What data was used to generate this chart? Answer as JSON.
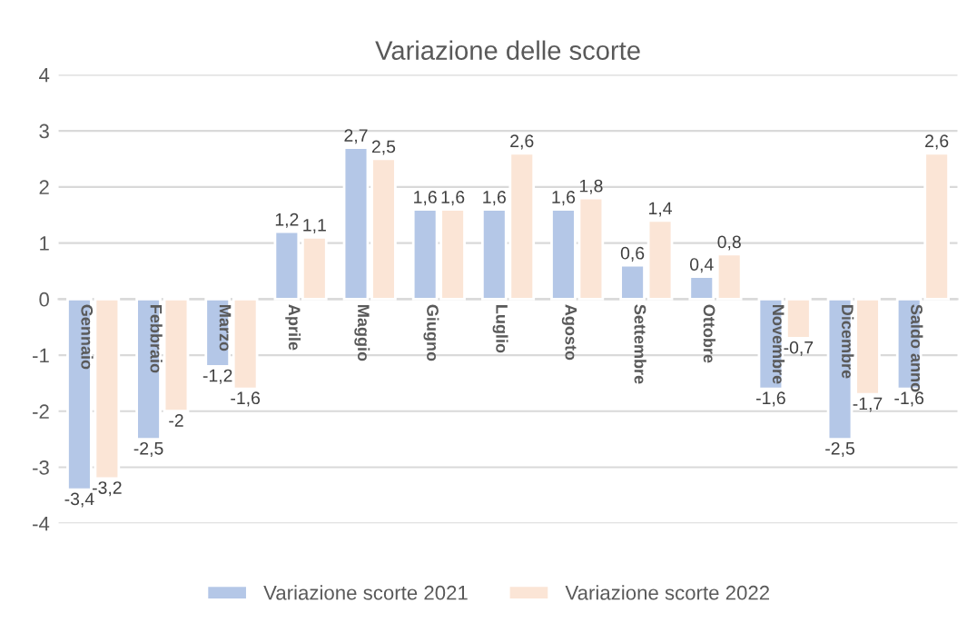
{
  "chart_data": {
    "type": "bar",
    "title": "Variazione delle scorte",
    "categories": [
      "Gennaio",
      "Febbraio",
      "Marzo",
      "Aprile",
      "Maggio",
      "Giugno",
      "Luglio",
      "Agosto",
      "Settembre",
      "Ottobre",
      "Novembre",
      "Dicembre",
      "Saldo anno"
    ],
    "series": [
      {
        "name": "Variazione scorte 2021",
        "color": "#b4c7e7",
        "values": [
          -3.4,
          -2.5,
          -1.2,
          1.2,
          2.7,
          1.6,
          1.6,
          1.6,
          0.6,
          0.4,
          -1.6,
          -2.5,
          -1.6
        ],
        "value_labels": [
          "-3,4",
          "-2,5",
          "-1,2",
          "1,2",
          "2,7",
          "1,6",
          "1,6",
          "1,6",
          "0,6",
          "0,4",
          "-1,6",
          "-2,5",
          "-1,6"
        ]
      },
      {
        "name": "Variazione scorte 2022",
        "color": "#fbe5d6",
        "values": [
          -3.2,
          -2,
          -1.6,
          1.1,
          2.5,
          1.6,
          2.6,
          1.8,
          1.4,
          0.8,
          -0.7,
          -1.7,
          2.6
        ],
        "value_labels": [
          "-3,2",
          "-2",
          "-1,6",
          "1,1",
          "2,5",
          "1,6",
          "2,6",
          "1,8",
          "1,4",
          "0,8",
          "-0,7",
          "-1,7",
          "2,6"
        ]
      }
    ],
    "ylim": [
      -4,
      4
    ],
    "yticks": [
      -4,
      -3,
      -2,
      -1,
      0,
      1,
      2,
      3,
      4
    ],
    "grid": "y",
    "legend": "bottom"
  }
}
